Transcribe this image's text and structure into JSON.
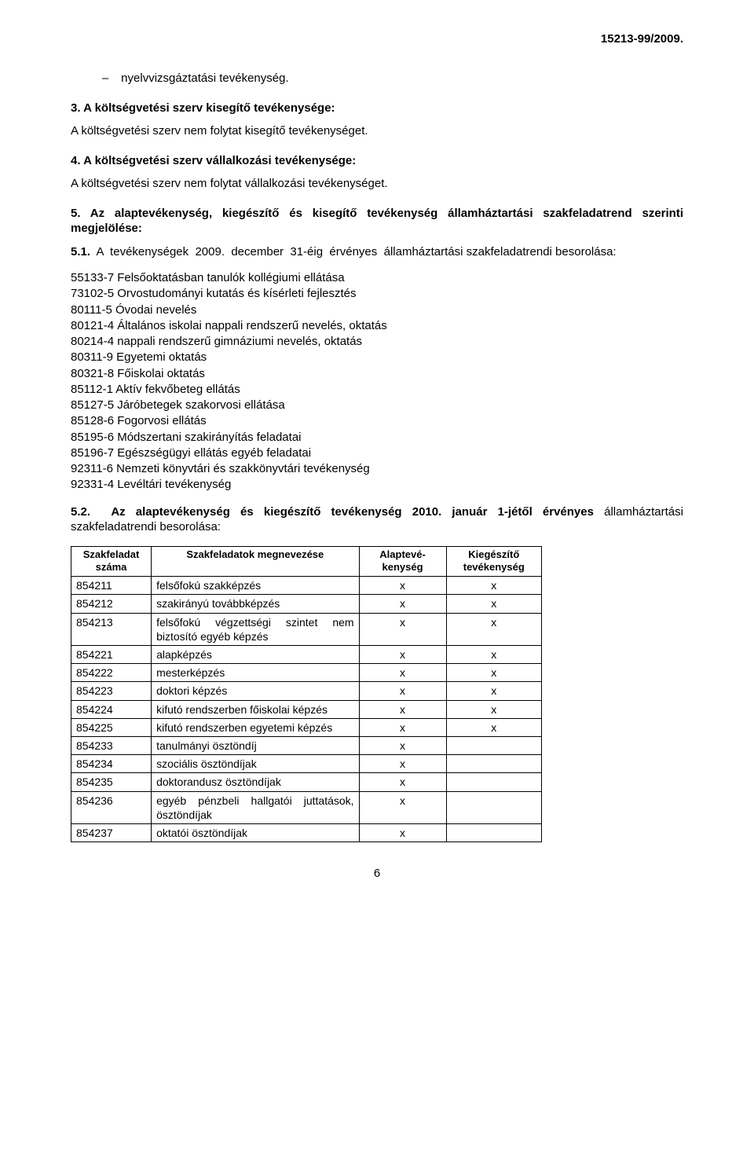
{
  "doc_number": "15213-99/2009.",
  "bullet_item": "nyelvvizsgáztatási tevékenység.",
  "sections": {
    "s3": {
      "heading": "3. A költségvetési szerv kisegítő tevékenysége:",
      "body": "A költségvetési szerv nem folytat kisegítő tevékenységet."
    },
    "s4": {
      "heading": "4. A költségvetési szerv vállalkozási tevékenysége:",
      "body": "A költségvetési szerv nem folytat vállalkozási tevékenységet."
    },
    "s5": {
      "heading": "5. Az alaptevékenység, kiegészítő és kisegítő tevékenység államháztartási szakfeladatrend szerinti megjelölése:"
    },
    "s5_1": {
      "heading": "5.1. A tevékenységek 2009. december 31-éig érvényes államháztartási szakfeladatrendi besorolása:",
      "codes": [
        "55133-7 Felsőoktatásban tanulók kollégiumi ellátása",
        "73102-5 Orvostudományi kutatás és kísérleti fejlesztés",
        "80111-5 Óvodai nevelés",
        "80121-4 Általános iskolai nappali rendszerű nevelés, oktatás",
        "80214-4 nappali rendszerű gimnáziumi nevelés, oktatás",
        "80311-9 Egyetemi oktatás",
        "80321-8 Főiskolai oktatás",
        "85112-1 Aktív fekvőbeteg ellátás",
        "85127-5 Járóbetegek szakorvosi ellátása",
        "85128-6 Fogorvosi ellátás",
        "85195-6 Módszertani szakirányítás feladatai",
        "85196-7 Egészségügyi ellátás egyéb feladatai",
        "92311-6 Nemzeti könyvtári és szakkönyvtári tevékenység",
        "92331-4 Levéltári tevékenység"
      ]
    },
    "s5_2": {
      "heading": "5.2. Az alaptevékenység és kiegészítő tevékenység 2010. január 1-jétől érvényes államháztartási szakfeladatrendi besorolása:"
    }
  },
  "table": {
    "columns": [
      "Szakfeladat száma",
      "Szakfeladatok megnevezése",
      "Alaptevé-kenység",
      "Kiegészítő tevékenység"
    ],
    "rows": [
      [
        "854211",
        "felsőfokú szakképzés",
        "x",
        "x"
      ],
      [
        "854212",
        "szakirányú továbbképzés",
        "x",
        "x"
      ],
      [
        "854213",
        "felsőfokú végzettségi szintet nem biztosító egyéb képzés",
        "x",
        "x"
      ],
      [
        "854221",
        "alapképzés",
        "x",
        "x"
      ],
      [
        "854222",
        "mesterképzés",
        "x",
        "x"
      ],
      [
        "854223",
        "doktori képzés",
        "x",
        "x"
      ],
      [
        "854224",
        "kifutó rendszerben főiskolai képzés",
        "x",
        "x"
      ],
      [
        "854225",
        "kifutó rendszerben egyetemi képzés",
        "x",
        "x"
      ],
      [
        "854233",
        "tanulmányi ösztöndíj",
        "x",
        ""
      ],
      [
        "854234",
        "szociális ösztöndíjak",
        "x",
        ""
      ],
      [
        "854235",
        "doktorandusz ösztöndíjak",
        "x",
        ""
      ],
      [
        "854236",
        "egyéb pénzbeli hallgatói juttatások, ösztöndíjak",
        "x",
        ""
      ],
      [
        "854237",
        "oktatói ösztöndíjak",
        "x",
        ""
      ]
    ]
  },
  "page_number": "6"
}
